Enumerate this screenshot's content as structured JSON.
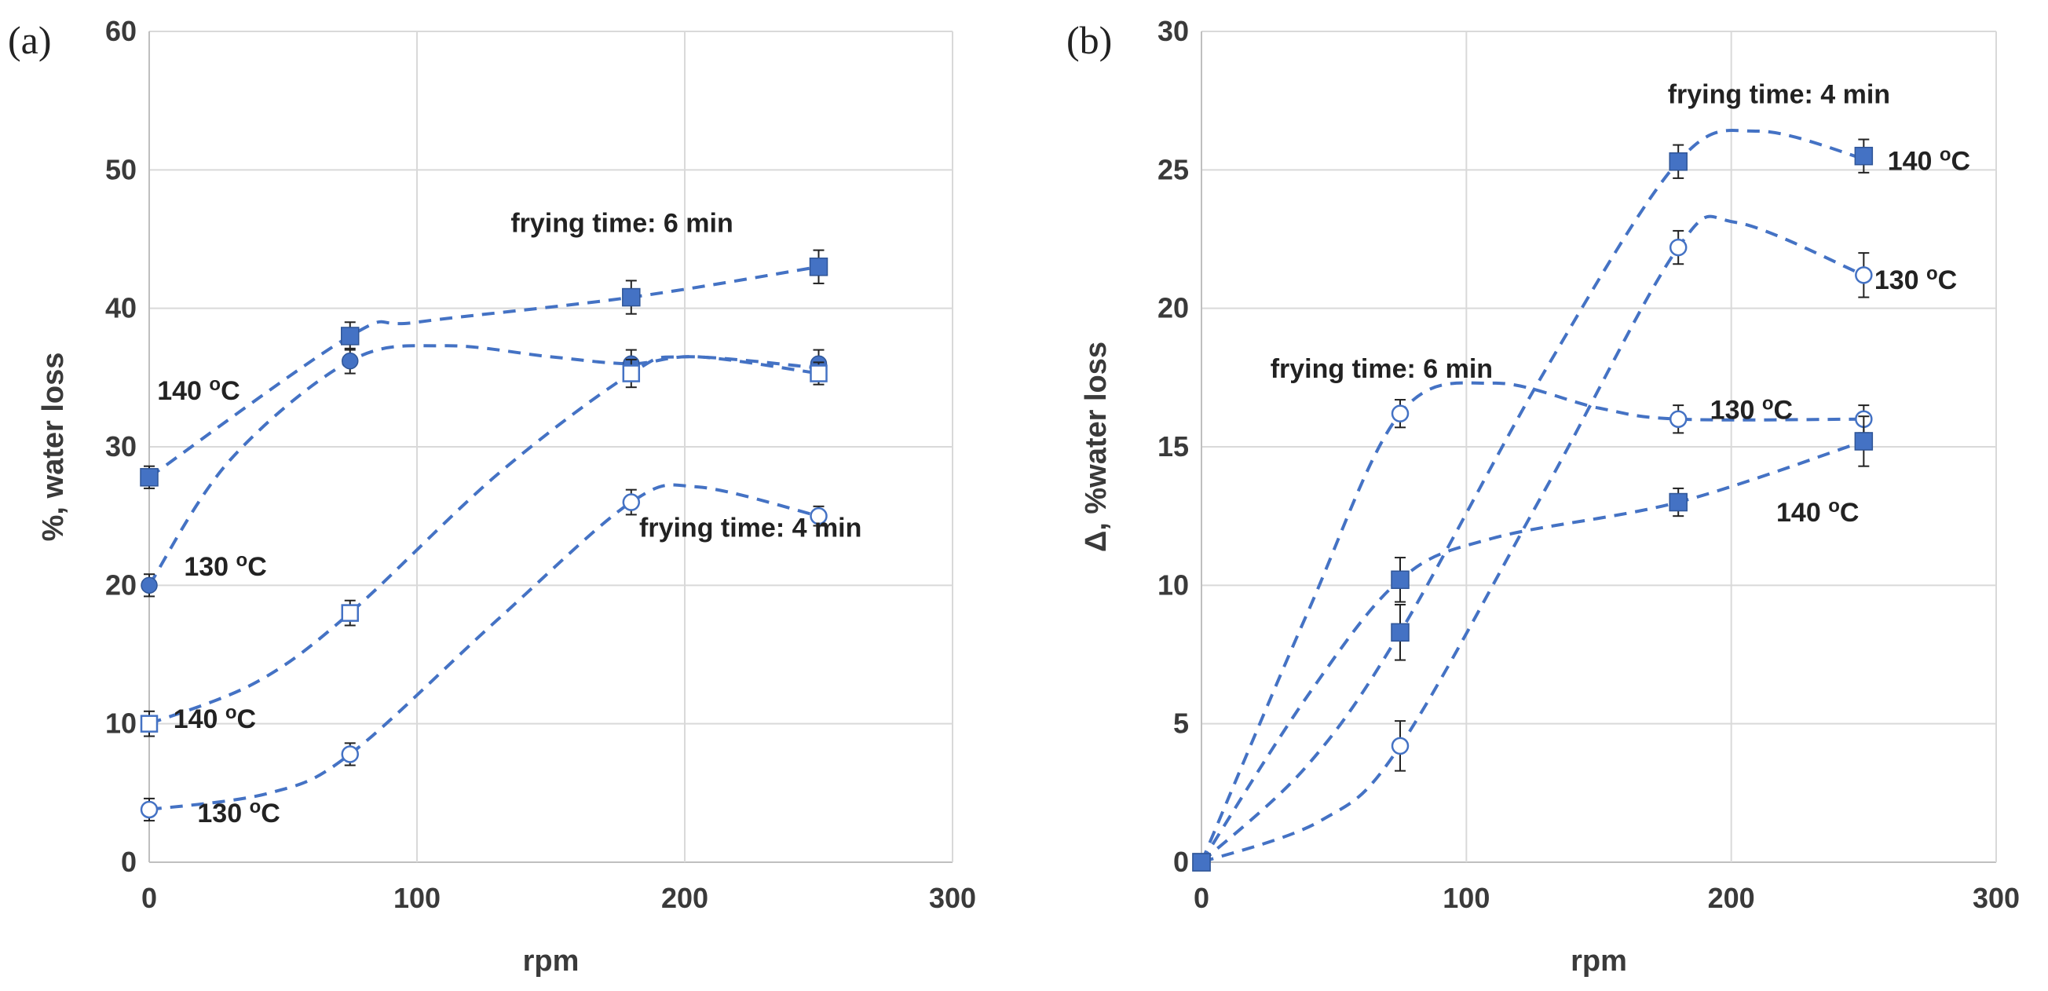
{
  "colors": {
    "series": "#4472c4",
    "grid": "#d9d9d9",
    "text": "#3a3a3a",
    "error_bar": "#222222"
  },
  "chart_data": [
    {
      "panel": "(a)",
      "type": "scatter",
      "xlabel": "rpm",
      "ylabel": "%, water loss",
      "xlim": [
        0,
        300
      ],
      "ylim": [
        0,
        60
      ],
      "xticks": [
        0,
        100,
        200,
        300
      ],
      "yticks": [
        0,
        10,
        20,
        30,
        40,
        50,
        60
      ],
      "grid": true,
      "series": [
        {
          "name": "frying time: 6 min, 140 °C",
          "marker": "filled-square",
          "x": [
            0,
            75,
            180,
            250
          ],
          "y": [
            27.8,
            38,
            40.8,
            43
          ],
          "err": [
            0.8,
            1.0,
            1.2,
            1.2
          ],
          "curve": [
            [
              0,
              27.8
            ],
            [
              75,
              38
            ],
            [
              100,
              39
            ],
            [
              180,
              40.8
            ],
            [
              250,
              43
            ]
          ]
        },
        {
          "name": "frying time: 6 min, 130 °C",
          "marker": "filled-circle",
          "x": [
            0,
            75,
            180,
            250
          ],
          "y": [
            20,
            36.2,
            36,
            36
          ],
          "err": [
            0.8,
            0.9,
            1.0,
            1.0
          ],
          "curve": [
            [
              0,
              20
            ],
            [
              30,
              29
            ],
            [
              75,
              36.2
            ],
            [
              110,
              37.3
            ],
            [
              150,
              36.5
            ],
            [
              180,
              36
            ],
            [
              205,
              36.5
            ],
            [
              250,
              35.3
            ]
          ]
        },
        {
          "name": "frying time: 4 min, 140 °C",
          "marker": "open-square",
          "x": [
            0,
            75,
            180,
            250
          ],
          "y": [
            10,
            18,
            35.3,
            35.3
          ],
          "err": [
            0.9,
            0.9,
            1.0,
            0.8
          ],
          "curve": [
            [
              0,
              10
            ],
            [
              40,
              13
            ],
            [
              75,
              18
            ],
            [
              130,
              28
            ],
            [
              180,
              35.3
            ],
            [
              200,
              36.5
            ],
            [
              250,
              35.7
            ]
          ]
        },
        {
          "name": "frying time: 4 min, 130 °C",
          "marker": "open-circle",
          "x": [
            0,
            75,
            180,
            250
          ],
          "y": [
            3.8,
            7.8,
            26,
            25
          ],
          "err": [
            0.8,
            0.8,
            0.9,
            0.7
          ],
          "curve": [
            [
              0,
              3.8
            ],
            [
              45,
              5
            ],
            [
              75,
              7.8
            ],
            [
              130,
              17.5
            ],
            [
              180,
              26
            ],
            [
              205,
              27.1
            ],
            [
              250,
              25
            ]
          ]
        }
      ],
      "annotations": [
        {
          "text": "frying time: 6 min",
          "x": 135,
          "y": 45.5
        },
        {
          "text": "frying time: 4 min",
          "x": 183,
          "y": 23.5
        },
        {
          "text": "140 ",
          "sup": "o",
          "unit": "C",
          "x": 3,
          "y": 33.4
        },
        {
          "text": "130 ",
          "sup": "o",
          "unit": "C",
          "x": 13,
          "y": 20.7
        },
        {
          "text": "140 ",
          "sup": "o",
          "unit": "C",
          "x": 9,
          "y": 9.7
        },
        {
          "text": "130 ",
          "sup": "o",
          "unit": "C",
          "x": 18,
          "y": 2.9
        }
      ]
    },
    {
      "panel": "(b)",
      "type": "scatter",
      "xlabel": "rpm",
      "ylabel": "Δ, %water loss",
      "xlim": [
        0,
        300
      ],
      "ylim": [
        0,
        30
      ],
      "xticks": [
        0,
        100,
        200,
        300
      ],
      "yticks": [
        0,
        5,
        10,
        15,
        20,
        25,
        30
      ],
      "grid": true,
      "series": [
        {
          "name": "frying time: 4 min, 140 °C",
          "marker": "filled-square",
          "x": [
            0,
            75,
            180,
            250
          ],
          "y": [
            0,
            8.3,
            25.3,
            25.5
          ],
          "err": [
            0,
            1.0,
            0.6,
            0.6
          ],
          "curve": [
            [
              0,
              0
            ],
            [
              40,
              3.5
            ],
            [
              75,
              8.3
            ],
            [
              130,
              17.8
            ],
            [
              180,
              25.3
            ],
            [
              210,
              26.4
            ],
            [
              250,
              25.4
            ]
          ]
        },
        {
          "name": "frying time: 4 min, 130 °C",
          "marker": "open-circle",
          "x": [
            0,
            75,
            180,
            250
          ],
          "y": [
            0,
            4.2,
            22.2,
            21.2
          ],
          "err": [
            0,
            0.9,
            0.6,
            0.8
          ],
          "curve": [
            [
              0,
              0
            ],
            [
              45,
              1.5
            ],
            [
              75,
              4.2
            ],
            [
              130,
              13.5
            ],
            [
              180,
              22.2
            ],
            [
              202,
              23.1
            ],
            [
              250,
              21.2
            ]
          ]
        },
        {
          "name": "frying time: 6 min, 130 °C",
          "marker": "open-circle",
          "x": [
            0,
            75,
            180,
            250
          ],
          "y": [
            0,
            16.2,
            16,
            16
          ],
          "err": [
            0,
            0.5,
            0.5,
            0.5
          ],
          "curve": [
            [
              0,
              0
            ],
            [
              40,
              9
            ],
            [
              75,
              16.2
            ],
            [
              110,
              17.3
            ],
            [
              150,
              16.4
            ],
            [
              180,
              16
            ],
            [
              250,
              16
            ]
          ]
        },
        {
          "name": "frying time: 6 min, 140 °C",
          "marker": "filled-square",
          "x": [
            0,
            75,
            180,
            250
          ],
          "y": [
            0,
            10.2,
            13,
            15.2
          ],
          "err": [
            0,
            0.8,
            0.5,
            0.9
          ],
          "curve": [
            [
              0,
              0
            ],
            [
              40,
              6
            ],
            [
              75,
              10.2
            ],
            [
              110,
              11.7
            ],
            [
              180,
              13
            ],
            [
              250,
              15.2
            ]
          ]
        }
      ],
      "annotations": [
        {
          "text": "frying time: 4 min",
          "x": 176,
          "y": 27.4
        },
        {
          "text": "frying time: 6 min",
          "x": 26,
          "y": 17.5
        },
        {
          "text": "140 ",
          "sup": "o",
          "unit": "C",
          "x": 259,
          "y": 25
        },
        {
          "text": "130 ",
          "sup": "o",
          "unit": "C",
          "x": 254,
          "y": 20.7
        },
        {
          "text": "130 ",
          "sup": "o",
          "unit": "C",
          "x": 192,
          "y": 16
        },
        {
          "text": "140 ",
          "sup": "o",
          "unit": "C",
          "x": 217,
          "y": 12.3
        }
      ]
    }
  ]
}
